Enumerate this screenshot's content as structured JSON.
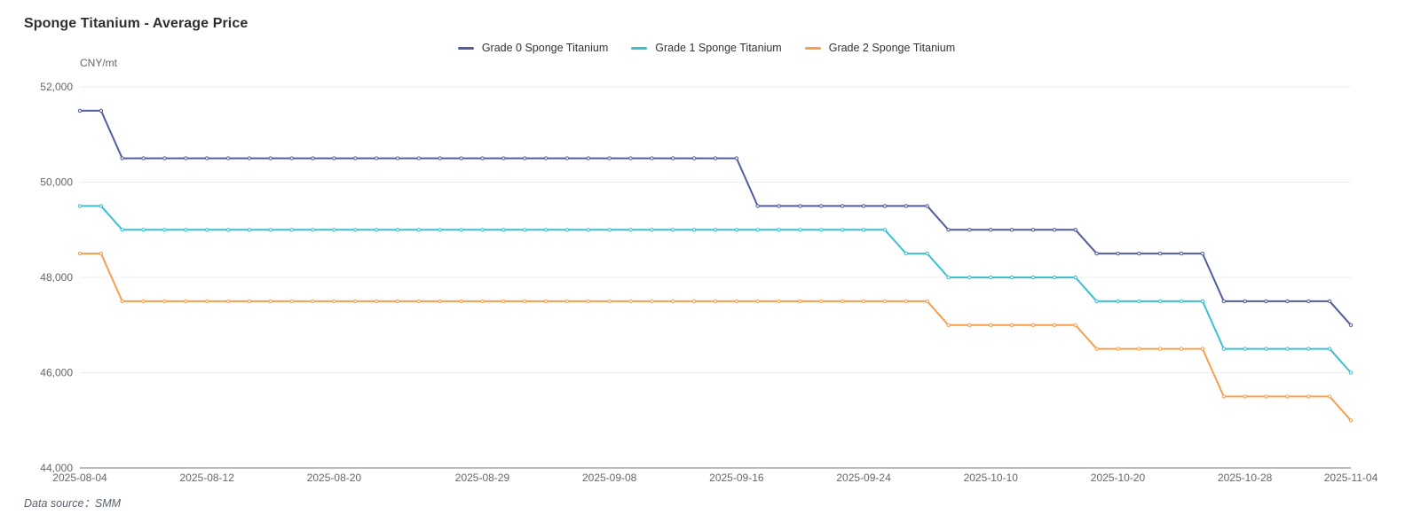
{
  "title": "Sponge Titanium - Average Price",
  "data_source": "Data source：SMM",
  "colors": {
    "grade0": "#505c9d",
    "grade1": "#3ac0d2",
    "grade2": "#f79e4d",
    "grid_line": "#ededed",
    "axis_line": "#767b84",
    "tick_text": "#666666",
    "title_text": "#2e2e2e",
    "legend_text": "#333333",
    "source_text": "#59616e"
  },
  "chart_data": {
    "type": "line",
    "title": "Sponge Titanium - Average Price",
    "xlabel": "",
    "ylabel": "CNY/mt",
    "ylim": [
      44000,
      52000
    ],
    "y_ticks": [
      52000,
      50000,
      48000,
      46000,
      44000
    ],
    "y_tick_labels": [
      "52,000",
      "50,000",
      "48,000",
      "46,000",
      "44,000"
    ],
    "grid": true,
    "legend_position": "top-center",
    "line_style": "step-like daily data, small empty-circle markers",
    "x_tick_labels": [
      "2025-08-04",
      "2025-08-12",
      "2025-08-20",
      "2025-08-29",
      "2025-09-08",
      "2025-09-16",
      "2025-09-24",
      "2025-10-10",
      "2025-10-20",
      "2025-10-28",
      "2025-11-04"
    ],
    "x_tick_indices": [
      0,
      6,
      12,
      19,
      25,
      31,
      37,
      43,
      49,
      55,
      60
    ],
    "categories": [
      "2025-08-04",
      "2025-08-05",
      "2025-08-06",
      "2025-08-07",
      "2025-08-08",
      "2025-08-11",
      "2025-08-12",
      "2025-08-13",
      "2025-08-14",
      "2025-08-15",
      "2025-08-18",
      "2025-08-19",
      "2025-08-20",
      "2025-08-21",
      "2025-08-22",
      "2025-08-25",
      "2025-08-26",
      "2025-08-27",
      "2025-08-28",
      "2025-08-29",
      "2025-09-01",
      "2025-09-02",
      "2025-09-03",
      "2025-09-04",
      "2025-09-05",
      "2025-09-08",
      "2025-09-09",
      "2025-09-10",
      "2025-09-11",
      "2025-09-12",
      "2025-09-15",
      "2025-09-16",
      "2025-09-17",
      "2025-09-18",
      "2025-09-19",
      "2025-09-22",
      "2025-09-23",
      "2025-09-24",
      "2025-09-25",
      "2025-09-26",
      "2025-09-29",
      "2025-09-30",
      "2025-10-09",
      "2025-10-10",
      "2025-10-13",
      "2025-10-14",
      "2025-10-15",
      "2025-10-16",
      "2025-10-17",
      "2025-10-20",
      "2025-10-21",
      "2025-10-22",
      "2025-10-23",
      "2025-10-24",
      "2025-10-27",
      "2025-10-28",
      "2025-10-29",
      "2025-10-30",
      "2025-10-31",
      "2025-11-03",
      "2025-11-04"
    ],
    "series": [
      {
        "name": "Grade 0 Sponge Titanium",
        "color": "#505c9d",
        "values": [
          51500,
          51500,
          50500,
          50500,
          50500,
          50500,
          50500,
          50500,
          50500,
          50500,
          50500,
          50500,
          50500,
          50500,
          50500,
          50500,
          50500,
          50500,
          50500,
          50500,
          50500,
          50500,
          50500,
          50500,
          50500,
          50500,
          50500,
          50500,
          50500,
          50500,
          50500,
          50500,
          49500,
          49500,
          49500,
          49500,
          49500,
          49500,
          49500,
          49500,
          49500,
          49000,
          49000,
          49000,
          49000,
          49000,
          49000,
          49000,
          48500,
          48500,
          48500,
          48500,
          48500,
          48500,
          47500,
          47500,
          47500,
          47500,
          47500,
          47500,
          47000
        ]
      },
      {
        "name": "Grade 1 Sponge Titanium",
        "color": "#3ac0d2",
        "values": [
          49500,
          49500,
          49000,
          49000,
          49000,
          49000,
          49000,
          49000,
          49000,
          49000,
          49000,
          49000,
          49000,
          49000,
          49000,
          49000,
          49000,
          49000,
          49000,
          49000,
          49000,
          49000,
          49000,
          49000,
          49000,
          49000,
          49000,
          49000,
          49000,
          49000,
          49000,
          49000,
          49000,
          49000,
          49000,
          49000,
          49000,
          49000,
          49000,
          48500,
          48500,
          48000,
          48000,
          48000,
          48000,
          48000,
          48000,
          48000,
          47500,
          47500,
          47500,
          47500,
          47500,
          47500,
          46500,
          46500,
          46500,
          46500,
          46500,
          46500,
          46000
        ]
      },
      {
        "name": "Grade 2 Sponge Titanium",
        "color": "#f79e4d",
        "values": [
          48500,
          48500,
          47500,
          47500,
          47500,
          47500,
          47500,
          47500,
          47500,
          47500,
          47500,
          47500,
          47500,
          47500,
          47500,
          47500,
          47500,
          47500,
          47500,
          47500,
          47500,
          47500,
          47500,
          47500,
          47500,
          47500,
          47500,
          47500,
          47500,
          47500,
          47500,
          47500,
          47500,
          47500,
          47500,
          47500,
          47500,
          47500,
          47500,
          47500,
          47500,
          47000,
          47000,
          47000,
          47000,
          47000,
          47000,
          47000,
          46500,
          46500,
          46500,
          46500,
          46500,
          46500,
          45500,
          45500,
          45500,
          45500,
          45500,
          45500,
          45000
        ]
      }
    ]
  }
}
